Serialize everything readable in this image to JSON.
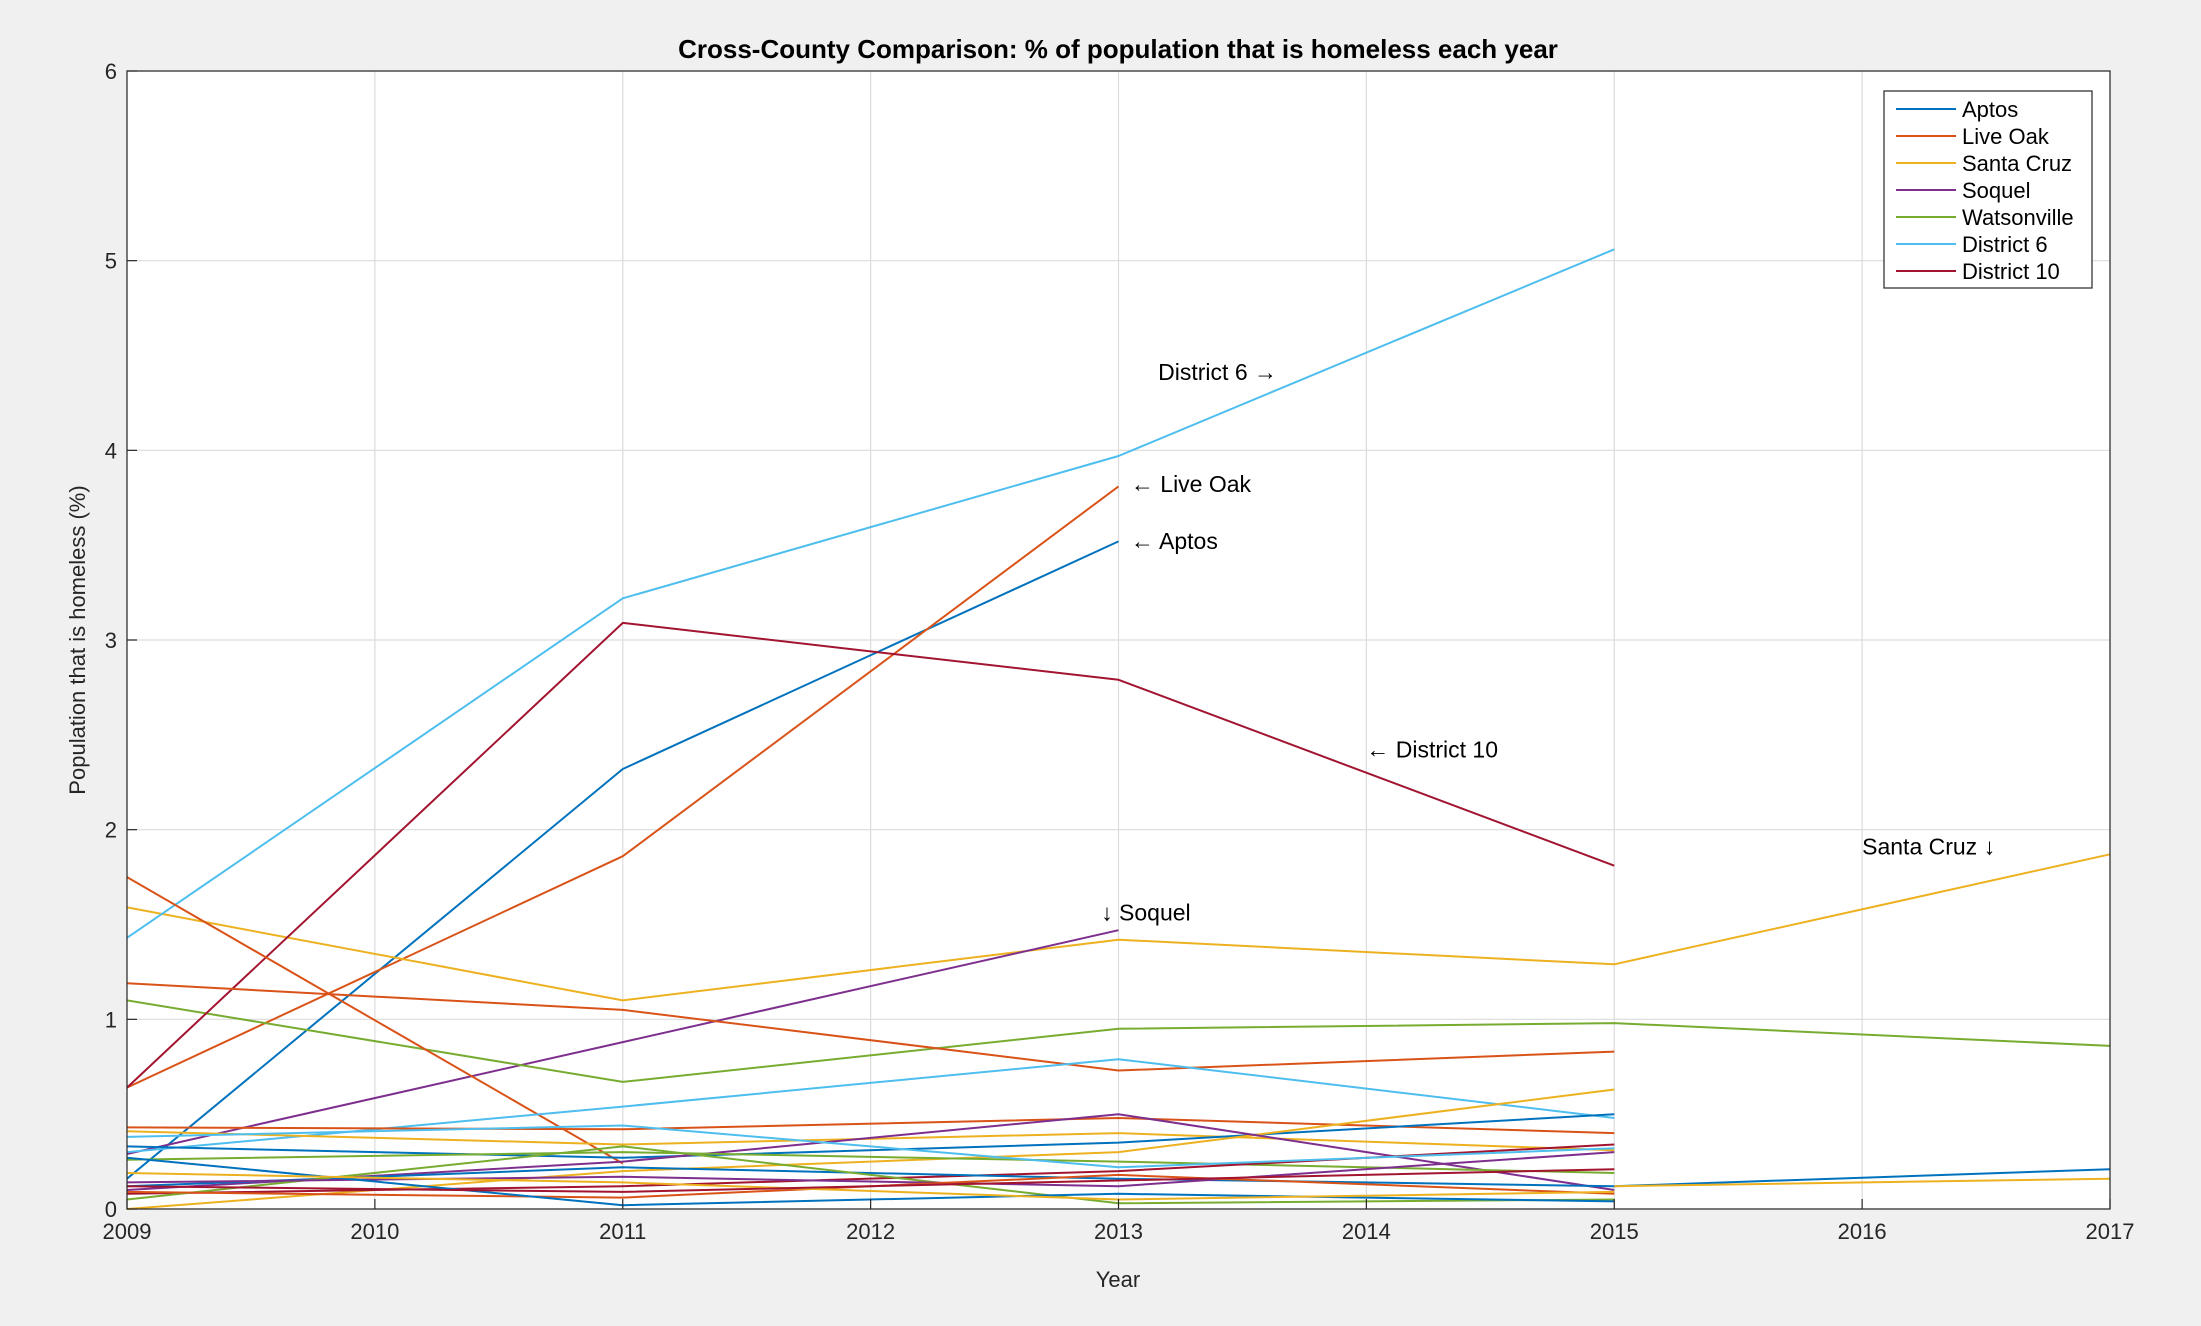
{
  "chart_data": {
    "type": "line",
    "title": "Cross-County Comparison: % of population that is homeless each year",
    "xlabel": "Year",
    "ylabel": "Population that is homeless (%)",
    "xlim": [
      2009,
      2017
    ],
    "ylim": [
      0,
      6
    ],
    "xticks": [
      "2009",
      "2010",
      "2011",
      "2012",
      "2013",
      "2014",
      "2015",
      "2016",
      "2017"
    ],
    "yticks": [
      "0",
      "1",
      "2",
      "3",
      "4",
      "5",
      "6"
    ],
    "grid": true,
    "legend_position": "top-right",
    "legend": [
      {
        "name": "Aptos",
        "color": "#0072bd"
      },
      {
        "name": "Live Oak",
        "color": "#d95319"
      },
      {
        "name": "Santa Cruz",
        "color": "#edb120"
      },
      {
        "name": "Soquel",
        "color": "#7e2f8e"
      },
      {
        "name": "Watsonville",
        "color": "#77ac30"
      },
      {
        "name": "District 6",
        "color": "#4dbeee"
      },
      {
        "name": "District 10",
        "color": "#a2142f"
      }
    ],
    "series": [
      {
        "name": "Aptos",
        "color": "#0072bd",
        "x": [
          2009,
          2011,
          2013
        ],
        "y": [
          0.16,
          2.32,
          3.52
        ]
      },
      {
        "name": "Live Oak",
        "color": "#d95319",
        "x": [
          2009,
          2011,
          2013
        ],
        "y": [
          0.64,
          1.86,
          3.81
        ]
      },
      {
        "name": "Santa Cruz",
        "color": "#edb120",
        "x": [
          2009,
          2011,
          2013,
          2015,
          2017
        ],
        "y": [
          1.59,
          1.1,
          1.42,
          1.29,
          1.87
        ]
      },
      {
        "name": "Soquel",
        "color": "#7e2f8e",
        "x": [
          2009,
          2011,
          2013
        ],
        "y": [
          0.29,
          0.88,
          1.47
        ]
      },
      {
        "name": "Watsonville",
        "color": "#77ac30",
        "x": [
          2009,
          2011,
          2013,
          2015,
          2017
        ],
        "y": [
          1.1,
          0.67,
          0.95,
          0.98,
          0.86
        ]
      },
      {
        "name": "District 6",
        "color": "#4dbeee",
        "x": [
          2009,
          2011,
          2013,
          2015
        ],
        "y": [
          1.43,
          3.22,
          3.97,
          5.06
        ]
      },
      {
        "name": "District 10",
        "color": "#a2142f",
        "x": [
          2009,
          2011,
          2013,
          2015
        ],
        "y": [
          0.64,
          3.09,
          2.79,
          1.81
        ]
      },
      {
        "name": "",
        "color": "#d95319",
        "x": [
          2009,
          2011,
          2013,
          2015
        ],
        "y": [
          1.19,
          1.05,
          0.73,
          0.83
        ]
      },
      {
        "name": "",
        "color": "#d95319",
        "x": [
          2009,
          2011
        ],
        "y": [
          1.75,
          0.24
        ]
      },
      {
        "name": "",
        "color": "#4dbeee",
        "x": [
          2009,
          2011,
          2013,
          2015
        ],
        "y": [
          0.3,
          0.54,
          0.79,
          0.48
        ]
      },
      {
        "name": "",
        "color": "#d95319",
        "x": [
          2009,
          2011,
          2013,
          2015
        ],
        "y": [
          0.43,
          0.42,
          0.48,
          0.4
        ]
      },
      {
        "name": "",
        "color": "#edb120",
        "x": [
          2009,
          2011,
          2013,
          2015
        ],
        "y": [
          0.41,
          0.34,
          0.4,
          0.31
        ]
      },
      {
        "name": "",
        "color": "#0072bd",
        "x": [
          2009,
          2011,
          2013,
          2015
        ],
        "y": [
          0.33,
          0.27,
          0.35,
          0.5
        ]
      },
      {
        "name": "",
        "color": "#edb120",
        "x": [
          2009,
          2011,
          2013,
          2015
        ],
        "y": [
          0.0,
          0.2,
          0.3,
          0.63
        ]
      },
      {
        "name": "",
        "color": "#7e2f8e",
        "x": [
          2009,
          2011,
          2013,
          2015
        ],
        "y": [
          0.1,
          0.25,
          0.5,
          0.1
        ]
      },
      {
        "name": "",
        "color": "#77ac30",
        "x": [
          2009,
          2011,
          2013,
          2015
        ],
        "y": [
          0.26,
          0.3,
          0.25,
          0.19
        ]
      },
      {
        "name": "",
        "color": "#a2142f",
        "x": [
          2009,
          2011,
          2013,
          2015
        ],
        "y": [
          0.08,
          0.12,
          0.2,
          0.34
        ]
      },
      {
        "name": "",
        "color": "#0072bd",
        "x": [
          2009,
          2011,
          2013,
          2015
        ],
        "y": [
          0.12,
          0.22,
          0.16,
          0.12
        ]
      },
      {
        "name": "",
        "color": "#4dbeee",
        "x": [
          2009,
          2011,
          2013,
          2015
        ],
        "y": [
          0.38,
          0.44,
          0.22,
          0.32
        ]
      },
      {
        "name": "",
        "color": "#77ac30",
        "x": [
          2009,
          2011,
          2013,
          2015
        ],
        "y": [
          0.05,
          0.33,
          0.03,
          0.05
        ]
      },
      {
        "name": "",
        "color": "#7e2f8e",
        "x": [
          2009,
          2011,
          2013,
          2015
        ],
        "y": [
          0.14,
          0.17,
          0.12,
          0.3
        ]
      },
      {
        "name": "",
        "color": "#d95319",
        "x": [
          2009,
          2011,
          2013,
          2015
        ],
        "y": [
          0.09,
          0.06,
          0.18,
          0.08
        ]
      },
      {
        "name": "",
        "color": "#0072bd",
        "x": [
          2009,
          2011,
          2013,
          2015
        ],
        "y": [
          0.27,
          0.02,
          0.08,
          0.04
        ]
      },
      {
        "name": "",
        "color": "#edb120",
        "x": [
          2009,
          2011,
          2013,
          2015
        ],
        "y": [
          0.19,
          0.14,
          0.05,
          0.09
        ]
      },
      {
        "name": "",
        "color": "#a2142f",
        "x": [
          2009,
          2011,
          2013,
          2015
        ],
        "y": [
          0.12,
          0.09,
          0.15,
          0.21
        ]
      },
      {
        "name": "",
        "color": "#0072bd",
        "x": [
          2015,
          2017
        ],
        "y": [
          0.12,
          0.21
        ]
      },
      {
        "name": "",
        "color": "#edb120",
        "x": [
          2015,
          2017
        ],
        "y": [
          0.12,
          0.16
        ]
      }
    ],
    "annotations": [
      {
        "text": "District 6 →",
        "x": 2013.16,
        "y": 4.37
      },
      {
        "text": "← Live Oak",
        "x": 2013.05,
        "y": 3.78
      },
      {
        "text": "← Aptos",
        "x": 2013.05,
        "y": 3.48
      },
      {
        "text": "← District 10",
        "x": 2014.0,
        "y": 2.38
      },
      {
        "text": "↓ Soquel",
        "x": 2012.93,
        "y": 1.52
      },
      {
        "text": "Santa Cruz ↓",
        "x": 2016.0,
        "y": 1.87
      }
    ]
  }
}
